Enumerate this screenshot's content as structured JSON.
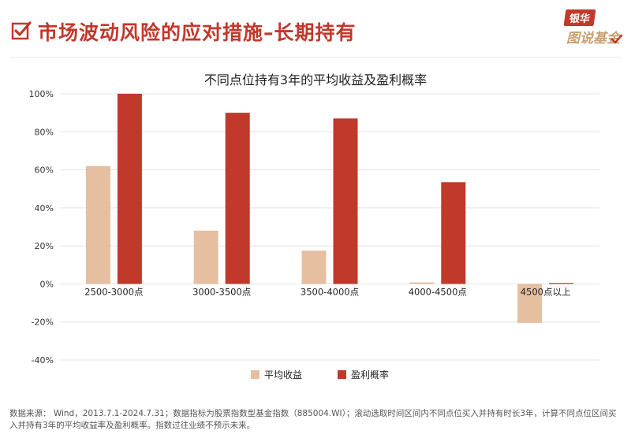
{
  "header": {
    "title": "市场波动风险的应对措施–长期持有",
    "logo_top": "银华",
    "logo_bottom": "图说基金"
  },
  "chart_data": {
    "type": "bar",
    "title": "不同点位持有3年的平均收益及盈利概率",
    "categories": [
      "2500-3000点",
      "3000-3500点",
      "3500-4000点",
      "4000-4500点",
      "4500点以上"
    ],
    "series": [
      {
        "name": "平均收益",
        "color": "#e5bfa0",
        "values": [
          62,
          28,
          17.5,
          0.8,
          -20.5
        ]
      },
      {
        "name": "盈利概率",
        "color": "#c0392b",
        "values": [
          100,
          90,
          87,
          53.5,
          0.5
        ]
      }
    ],
    "ylim": [
      -40,
      100
    ],
    "yticks": [
      "100%",
      "80%",
      "60%",
      "40%",
      "20%",
      "0%",
      "-20%",
      "-40%"
    ],
    "ytick_values": [
      100,
      80,
      60,
      40,
      20,
      0,
      -20,
      -40
    ],
    "grid": true,
    "legend_position": "bottom"
  },
  "footnote": "数据来源： Wind，2013.7.1-2024.7.31；数据指标为股票指数型基金指数（885004.WI）；滚动选取时间区间内不同点位买入并持有时长3年，计算不同点位区间买入并持有3年的平均收益率及盈利概率。指数过往业绩不预示未来。"
}
